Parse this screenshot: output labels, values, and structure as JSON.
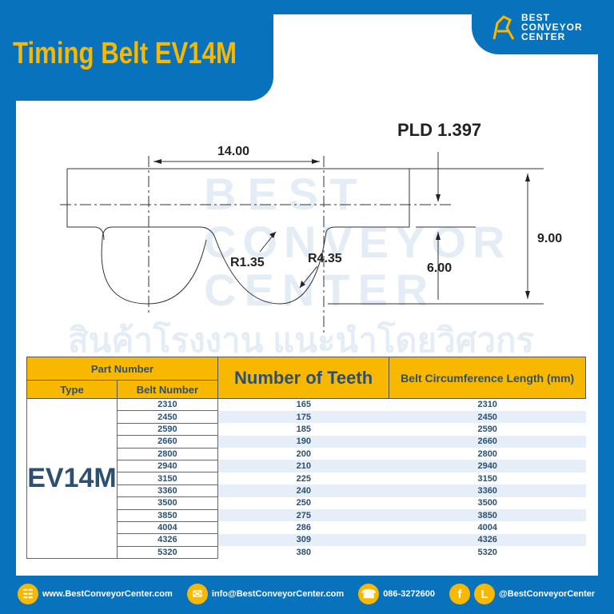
{
  "title": "Timing Belt EV14M",
  "logo": {
    "line1": "BEST",
    "line2": "CONVEYOR",
    "line3": "CENTER"
  },
  "watermark": {
    "line1": "BEST",
    "line2": "CONVEYOR",
    "line3": "CENTER",
    "thai": "สินค้าโรงงาน แนะนำโดยวิศวกร"
  },
  "drawing": {
    "pitch": "14.00",
    "pld": "PLD 1.397",
    "height": "9.00",
    "tooth_depth": "6.00",
    "r1": "R1.35",
    "r2": "R4.35"
  },
  "table": {
    "part_number": "Part Number",
    "type_header": "Type",
    "belt_number_header": "Belt Number",
    "teeth_header": "Number of Teeth",
    "length_header": "Belt Circumference Length (mm)",
    "type": "EV14M",
    "rows": [
      {
        "belt": "2310",
        "teeth": "165",
        "length": "2310"
      },
      {
        "belt": "2450",
        "teeth": "175",
        "length": "2450"
      },
      {
        "belt": "2590",
        "teeth": "185",
        "length": "2590"
      },
      {
        "belt": "2660",
        "teeth": "190",
        "length": "2660"
      },
      {
        "belt": "2800",
        "teeth": "200",
        "length": "2800"
      },
      {
        "belt": "2940",
        "teeth": "210",
        "length": "2940"
      },
      {
        "belt": "3150",
        "teeth": "225",
        "length": "3150"
      },
      {
        "belt": "3360",
        "teeth": "240",
        "length": "3360"
      },
      {
        "belt": "3500",
        "teeth": "250",
        "length": "3500"
      },
      {
        "belt": "3850",
        "teeth": "275",
        "length": "3850"
      },
      {
        "belt": "4004",
        "teeth": "286",
        "length": "4004"
      },
      {
        "belt": "4326",
        "teeth": "309",
        "length": "4326"
      },
      {
        "belt": "5320",
        "teeth": "380",
        "length": "5320"
      }
    ]
  },
  "footer": {
    "website": "www.BestConveyorCenter.com",
    "email": "info@BestConveyorCenter.com",
    "phone": "086-3272600",
    "social": "@BestConveyorCenter",
    "line_letter": "L",
    "fb_letter": "f"
  },
  "colors": {
    "blue": "#0872bd",
    "yellow": "#f8b800",
    "navy": "#2c4f72"
  }
}
